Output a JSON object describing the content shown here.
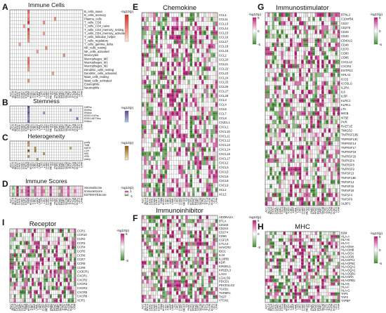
{
  "colors": {
    "pos_strong": "#c2187a",
    "pos_light": "#f3c6df",
    "neg_strong": "#3d8f2c",
    "neg_light": "#cfe7c1",
    "neutral": "#ffffff",
    "grid": "#8a8a8a",
    "immune_cells_high": "#d7301f",
    "immune_cells_low": "#fde4d6",
    "stemness_high": "#6a3d9a",
    "stemness_low": "#a6cee3",
    "heterogeneity_high": "#8c5a12",
    "heterogeneity_low": "#f6e8c3"
  },
  "cancers": [
    "ACC",
    "BLCA",
    "BRCA",
    "CESC",
    "CHOL",
    "COAD",
    "DLBC",
    "ESCA",
    "GBM",
    "HNSC",
    "KICH",
    "KIRC",
    "KIRP",
    "LAML",
    "LGG",
    "LIHC",
    "LUAD",
    "LUSC",
    "MESO",
    "OV",
    "PAAD",
    "PCPG",
    "PRAD",
    "READ",
    "SARC",
    "SKCM",
    "STAD",
    "TGCT",
    "THCA",
    "THYM",
    "UCEC",
    "UCS",
    "UVM"
  ],
  "cancers_abbrev": [
    "ACC",
    "BLCA",
    "BRCA",
    "CESC",
    "CHOL",
    "COAD",
    "DLBC",
    "ESCA",
    "GBM",
    "HNSC",
    "KICH",
    "KIRC",
    "KIRP",
    "LAML",
    "LGG",
    "LIHC",
    "LUAD",
    "LUSC",
    "MESO",
    "OV",
    "PAAD",
    "PCPG",
    "PRAD",
    "READ",
    "SARC",
    "SKCM",
    "STAD",
    "TGCT",
    "THCA",
    "THYM",
    "UCEC",
    "UCS",
    "UVM"
  ],
  "legend": {
    "title": "-log10(p)"
  },
  "panels": [
    {
      "letter": "A",
      "title": "Immune Cells",
      "scale": "immune_cells",
      "legend_ticks": [
        "",
        ""
      ],
      "rows": [
        "B_cells_naive",
        "B_cells_memory",
        "Plasma_cells",
        "T_cells_CD8",
        "T_cells_CD4_naive",
        "T_cells_CD4_memory_resting",
        "T_cells_CD4_memory_activated",
        "T_cells_follicular_helper",
        "T_cells_regulatory",
        "T_cells_gamma_delta",
        "NK_cells_resting",
        "NK_cells_activated",
        "Monocytes",
        "Macrophages_M0",
        "Macrophages_M1",
        "Macrophages_M2",
        "Dendritic_cells_resting",
        "Dendritic_cells_activated",
        "Mast_cells_resting",
        "Mast_cells_activated",
        "Eosinophils",
        "Neutrophils"
      ],
      "hot": [
        [
          0,
          8,
          0.7
        ],
        [
          1,
          8,
          0.5
        ],
        [
          2,
          8,
          0.6
        ],
        [
          3,
          8,
          0.9
        ],
        [
          4,
          6,
          0.4
        ],
        [
          5,
          8,
          0.8
        ],
        [
          6,
          8,
          0.7
        ],
        [
          7,
          8,
          0.6
        ],
        [
          8,
          8,
          0.5
        ],
        [
          3,
          15,
          0.5
        ],
        [
          6,
          15,
          0.4
        ],
        [
          10,
          16,
          0.5
        ],
        [
          13,
          8,
          0.6
        ],
        [
          14,
          8,
          0.7
        ],
        [
          15,
          8,
          0.5
        ],
        [
          2,
          20,
          0.5
        ],
        [
          12,
          24,
          0.5
        ],
        [
          16,
          8,
          0.4
        ],
        [
          9,
          4,
          0.4
        ],
        [
          11,
          12,
          0.4
        ],
        [
          17,
          19,
          0.4
        ],
        [
          19,
          8,
          0.5
        ]
      ]
    },
    {
      "letter": "B",
      "title": "Stemness",
      "scale": "stemness",
      "legend_ticks": [
        "",
        ""
      ],
      "rows": [
        "DMPss",
        "ENHss",
        "RNAss",
        "EREG.EXPss",
        "EREG.METHss",
        "DNAss"
      ],
      "hot": [
        [
          0,
          8,
          0.9
        ],
        [
          1,
          8,
          0.7
        ],
        [
          2,
          8,
          0.8
        ],
        [
          3,
          8,
          0.6
        ],
        [
          4,
          8,
          0.5
        ],
        [
          5,
          8,
          0.7
        ],
        [
          2,
          15,
          0.4
        ],
        [
          4,
          30,
          0.6
        ],
        [
          1,
          27,
          0.4
        ]
      ]
    },
    {
      "letter": "C",
      "title": "Heterogeneity",
      "scale": "heterogeneity",
      "legend_ticks": [
        "",
        ""
      ],
      "rows": [
        "purity",
        "TMB",
        "MATH",
        "LOH",
        "MSI",
        "HRD",
        "ploidy"
      ],
      "hot": [
        [
          0,
          8,
          0.6
        ],
        [
          1,
          8,
          0.5
        ],
        [
          2,
          11,
          0.6
        ],
        [
          3,
          8,
          0.9
        ],
        [
          3,
          11,
          0.7
        ],
        [
          4,
          15,
          0.6
        ],
        [
          5,
          8,
          0.6
        ],
        [
          6,
          12,
          0.5
        ],
        [
          2,
          27,
          0.5
        ]
      ]
    },
    {
      "letter": "D",
      "title": "Immune Scores",
      "scale": "diverging",
      "legend_ticks": [
        "1",
        "-1"
      ],
      "rows": [
        "StromalScore",
        "ImmuneScore",
        "ESTIMATEScore"
      ],
      "values": [
        [
          0.2,
          -0.6,
          -0.4,
          0.9,
          -0.3,
          0.5,
          -0.2,
          0.6,
          0.8,
          0.4,
          -0.5,
          0.7,
          0.3,
          0.4,
          0.6,
          0.5,
          -0.4,
          -0.3,
          0.8,
          0.2,
          0.3,
          0.5,
          -0.6,
          0.6,
          0.4,
          0.2,
          0.7,
          0.3,
          -0.4,
          0.5,
          0.2,
          0.3,
          0.4
        ],
        [
          0.3,
          -0.5,
          -0.5,
          0.8,
          -0.4,
          0.6,
          -0.3,
          0.7,
          0.9,
          0.5,
          -0.6,
          0.6,
          0.4,
          0.3,
          0.7,
          0.6,
          -0.3,
          -0.4,
          0.7,
          0.3,
          0.2,
          0.4,
          -0.5,
          0.7,
          0.3,
          0.3,
          0.6,
          0.4,
          -0.3,
          0.6,
          0.3,
          0.2,
          0.5
        ],
        [
          0.2,
          -0.6,
          -0.4,
          0.9,
          -0.3,
          0.5,
          -0.2,
          0.6,
          0.8,
          0.4,
          -0.5,
          0.7,
          0.3,
          0.4,
          0.6,
          0.5,
          -0.4,
          -0.3,
          0.8,
          0.2,
          0.3,
          0.5,
          -0.6,
          0.6,
          0.4,
          0.2,
          0.7,
          0.3,
          -0.4,
          0.5,
          0.2,
          0.3,
          0.4
        ]
      ]
    },
    {
      "letter": "I",
      "title": "Receptor",
      "scale": "diverging",
      "legend_ticks": [
        "5",
        "-5"
      ],
      "rows": [
        "CCR1",
        "CCR10",
        "CCR2",
        "CCR3",
        "CCR4",
        "CCR5",
        "CCR6",
        "CCR7",
        "CCR8",
        "CCR9",
        "CX3CR1",
        "CXCR1",
        "CXCR2",
        "CXCR3",
        "CXCR4",
        "CXCR5",
        "CXCR6",
        "XCR1"
      ]
    },
    {
      "letter": "E",
      "title": "Chemokine",
      "scale": "diverging",
      "legend_ticks": [
        "5",
        "0",
        "-5"
      ],
      "rows": [
        "CCL1",
        "CCL11",
        "CCL13",
        "CCL14",
        "CCL15",
        "CCL16",
        "CCL17",
        "CCL18",
        "CCL19",
        "CCL2",
        "CCL20",
        "CCL21",
        "CCL22",
        "CCL23",
        "CCL24",
        "CCL25",
        "CCL26",
        "CCL27",
        "CCL28",
        "CCL3",
        "CCL4",
        "CCL5",
        "CCL7",
        "CCL8",
        "CX3CL1",
        "CXCL1",
        "CXCL10",
        "CXCL11",
        "CXCL12",
        "CXCL13",
        "CXCL14",
        "CXCL16",
        "CXCL17",
        "CXCL2",
        "CXCL3",
        "CXCL5",
        "CXCL6",
        "CXCL8",
        "CXCL9",
        "XCL1",
        "XCL2"
      ]
    },
    {
      "letter": "F",
      "title": "Immunoinhibitor",
      "scale": "diverging",
      "legend_ticks": [
        "5",
        "0",
        "-5"
      ],
      "rows": [
        "ADORA2A",
        "BTLA",
        "CD160",
        "CD244",
        "CD274",
        "CD96",
        "CSF1R",
        "CTLA4",
        "HAVCR2",
        "IDO1",
        "IL10",
        "IL10RB",
        "KDR",
        "KIR2DL1",
        "KIR2DL3",
        "LAG3",
        "LGALS9",
        "PDCD1",
        "PDCD1LG2",
        "TGFB1",
        "TGFBR1",
        "TIGIT",
        "VTCN1"
      ]
    },
    {
      "letter": "G",
      "title": "Immunostimulator",
      "scale": "diverging",
      "legend_ticks": [
        "5",
        "0",
        "-5"
      ],
      "rows": [
        "BTNL2",
        "C10orf54",
        "CD27",
        "CD276",
        "CD28",
        "CD40",
        "CD40LG",
        "CD48",
        "CD70",
        "CD80",
        "CD86",
        "CXCL12",
        "CXCR4",
        "ENTPD1",
        "HHLA2",
        "ICOS",
        "ICOSLG",
        "IL2RA",
        "IL6",
        "IL6R",
        "KLRC1",
        "KLRK1",
        "LTA",
        "MICB",
        "NT5E",
        "PVR",
        "RAET1E",
        "TMIGD2",
        "TNFRSF13B",
        "TNFRSF13C",
        "TNFRSF14",
        "TNFRSF17",
        "TNFRSF18",
        "TNFRSF25",
        "TNFRSF4",
        "TNFRSF8",
        "TNFRSF9",
        "TNFSF13",
        "TNFSF13B",
        "TNFSF14",
        "TNFSF15",
        "TNFSF18",
        "TNFSF4",
        "TNFSF9",
        "ULBP1"
      ]
    },
    {
      "letter": "H",
      "title": "MHC",
      "scale": "diverging",
      "legend_ticks": [
        "5",
        "0",
        "-5"
      ],
      "rows": [
        "B2M",
        "HLA-A",
        "HLA-B",
        "HLA-C",
        "HLA-DMA",
        "HLA-DMB",
        "HLA-DOA",
        "HLA-DOB",
        "HLA-DPA1",
        "HLA-DPB1",
        "HLA-DQA1",
        "HLA-DQA2",
        "HLA-DQB1",
        "HLA-DRA",
        "HLA-DRB1",
        "HLA-E",
        "HLA-F",
        "HLA-G",
        "TAP1",
        "TAP2",
        "TAPBP"
      ]
    }
  ],
  "chart_data": {
    "type": "heatmap",
    "x": [
      "ACC",
      "BLCA",
      "BRCA",
      "CESC",
      "CHOL",
      "COAD",
      "DLBC",
      "ESCA",
      "GBM",
      "HNSC",
      "KICH",
      "KIRC",
      "KIRP",
      "LAML",
      "LGG",
      "LIHC",
      "LUAD",
      "LUSC",
      "MESO",
      "OV",
      "PAAD",
      "PCPG",
      "PRAD",
      "READ",
      "SARC",
      "SKCM",
      "STAD",
      "TGCT",
      "THCA",
      "THYM",
      "UCEC",
      "UCS",
      "UVM"
    ],
    "value_label": "-log10(p)",
    "panels": [
      "Immune Cells",
      "Stemness",
      "Heterogeneity",
      "Immune Scores",
      "Receptor",
      "Chemokine",
      "Immunoinhibitor",
      "Immunostimulator",
      "MHC"
    ],
    "significance_marks": [
      "*",
      "**",
      "***"
    ]
  }
}
